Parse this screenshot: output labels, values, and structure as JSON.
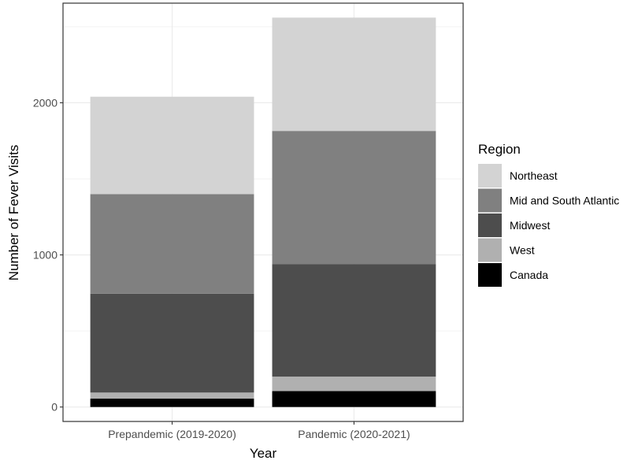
{
  "chart_data": {
    "type": "bar",
    "stacked": true,
    "xlabel": "Year",
    "ylabel": "Number of Fever Visits",
    "categories": [
      "Prepandemic (2019-2020)",
      "Pandemic (2020-2021)"
    ],
    "ylim": [
      -95,
      2655
    ],
    "yticks": [
      0,
      1000,
      2000
    ],
    "grid": true,
    "legend": {
      "title": "Region",
      "position": "right"
    },
    "series": [
      {
        "name": "Canada",
        "color": "#000000",
        "values": [
          55,
          105
        ]
      },
      {
        "name": "West",
        "color": "#b0b0b0",
        "values": [
          40,
          95
        ]
      },
      {
        "name": "Midwest",
        "color": "#4d4d4d",
        "values": [
          650,
          740
        ]
      },
      {
        "name": "Mid and South Atlantic",
        "color": "#808080",
        "values": [
          655,
          875
        ]
      },
      {
        "name": "Northeast",
        "color": "#d3d3d3",
        "values": [
          640,
          745
        ]
      }
    ],
    "legend_order": [
      "Northeast",
      "Mid and South Atlantic",
      "Midwest",
      "West",
      "Canada"
    ]
  }
}
